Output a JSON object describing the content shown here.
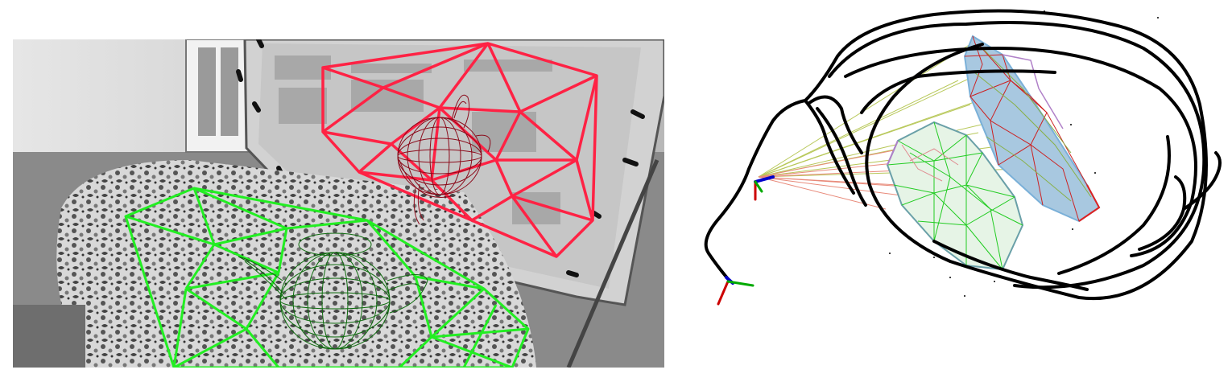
{
  "figure": {
    "left_panel": {
      "description_icon": "wireframe-overlay-on-grayscale-photo",
      "plane_colors": {
        "wall_plane": "#ff2244",
        "table_plane": "#22ee22"
      },
      "object_colors": {
        "teapot_on_wall": "#8b0a1a",
        "teapot_on_table": "#0d6b0d"
      }
    },
    "right_panel": {
      "description_icon": "3d-trajectory-and-plane-map",
      "colors": {
        "trajectory": "#000000",
        "table_mesh": "#22cc22",
        "wall_mesh": "#7ab0d8",
        "wall_mesh_edge": "#cc2222",
        "projection_rays_wall": "#b8c85a",
        "projection_rays_table": "#e88a7a",
        "axis_x": "#cc0000",
        "axis_y": "#00aa00",
        "axis_z": "#0000cc"
      }
    }
  }
}
